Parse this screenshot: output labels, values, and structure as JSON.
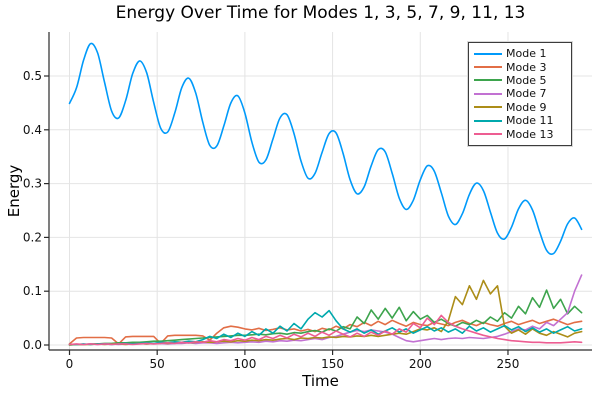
{
  "chart_data": {
    "type": "line",
    "title": "Energy Over Time for Modes 1, 3, 5, 7, 9, 11, 13",
    "xlabel": "Time",
    "ylabel": "Energy",
    "xlim": [
      -12,
      298
    ],
    "ylim": [
      -0.009,
      0.582
    ],
    "xticks": [
      0,
      50,
      100,
      150,
      200,
      250
    ],
    "xtick_labels": [
      "0",
      "50",
      "100",
      "150",
      "200",
      "250"
    ],
    "yticks": [
      0.0,
      0.1,
      0.2,
      0.3,
      0.4,
      0.5
    ],
    "ytick_labels": [
      "0.0",
      "0.1",
      "0.2",
      "0.3",
      "0.4",
      "0.5"
    ],
    "grid": true,
    "legend_position": "top-right",
    "x": [
      0,
      4,
      8,
      12,
      16,
      20,
      24,
      28,
      32,
      36,
      40,
      44,
      48,
      52,
      56,
      60,
      64,
      68,
      72,
      76,
      80,
      84,
      88,
      92,
      96,
      100,
      104,
      108,
      112,
      116,
      120,
      124,
      128,
      132,
      136,
      140,
      144,
      148,
      152,
      156,
      160,
      164,
      168,
      172,
      176,
      180,
      184,
      188,
      192,
      196,
      200,
      204,
      208,
      212,
      216,
      220,
      224,
      228,
      232,
      236,
      240,
      244,
      248,
      252,
      256,
      260,
      264,
      268,
      272,
      276,
      280,
      284,
      288,
      292
    ],
    "series": [
      {
        "name": "Mode 1",
        "color": "#009AFA",
        "smooth": true,
        "values": [
          0.449,
          0.478,
          0.529,
          0.56,
          0.543,
          0.488,
          0.435,
          0.422,
          0.454,
          0.504,
          0.528,
          0.506,
          0.451,
          0.403,
          0.396,
          0.431,
          0.478,
          0.496,
          0.468,
          0.414,
          0.371,
          0.37,
          0.407,
          0.45,
          0.463,
          0.431,
          0.377,
          0.34,
          0.344,
          0.383,
          0.422,
          0.428,
          0.393,
          0.342,
          0.31,
          0.319,
          0.358,
          0.393,
          0.394,
          0.356,
          0.307,
          0.281,
          0.294,
          0.333,
          0.363,
          0.359,
          0.319,
          0.273,
          0.252,
          0.269,
          0.307,
          0.333,
          0.323,
          0.283,
          0.24,
          0.224,
          0.244,
          0.28,
          0.301,
          0.287,
          0.247,
          0.208,
          0.197,
          0.219,
          0.253,
          0.269,
          0.251,
          0.211,
          0.176,
          0.17,
          0.193,
          0.225,
          0.236,
          0.215
        ]
      },
      {
        "name": "Mode 3",
        "color": "#E26E46",
        "smooth": false,
        "values": [
          0.002,
          0.013,
          0.014,
          0.014,
          0.014,
          0.014,
          0.013,
          0.002,
          0.015,
          0.016,
          0.016,
          0.016,
          0.016,
          0.003,
          0.017,
          0.018,
          0.018,
          0.018,
          0.018,
          0.017,
          0.009,
          0.022,
          0.032,
          0.035,
          0.033,
          0.03,
          0.028,
          0.031,
          0.027,
          0.029,
          0.032,
          0.028,
          0.03,
          0.026,
          0.029,
          0.025,
          0.031,
          0.028,
          0.035,
          0.03,
          0.038,
          0.034,
          0.042,
          0.036,
          0.044,
          0.038,
          0.046,
          0.04,
          0.035,
          0.042,
          0.038,
          0.036,
          0.042,
          0.039,
          0.036,
          0.042,
          0.046,
          0.04,
          0.036,
          0.042,
          0.038,
          0.035,
          0.04,
          0.044,
          0.038,
          0.042,
          0.046,
          0.04,
          0.044,
          0.048,
          0.043,
          0.038,
          0.042,
          0.044
        ]
      },
      {
        "name": "Mode 5",
        "color": "#3DA44D",
        "smooth": false,
        "values": [
          0.0,
          0.001,
          0.001,
          0.002,
          0.002,
          0.003,
          0.003,
          0.004,
          0.004,
          0.005,
          0.005,
          0.006,
          0.007,
          0.007,
          0.008,
          0.009,
          0.01,
          0.011,
          0.012,
          0.013,
          0.014,
          0.015,
          0.016,
          0.017,
          0.018,
          0.018,
          0.019,
          0.02,
          0.019,
          0.021,
          0.022,
          0.02,
          0.023,
          0.022,
          0.025,
          0.027,
          0.024,
          0.03,
          0.026,
          0.034,
          0.03,
          0.052,
          0.04,
          0.065,
          0.048,
          0.068,
          0.05,
          0.07,
          0.045,
          0.062,
          0.048,
          0.055,
          0.042,
          0.048,
          0.04,
          0.035,
          0.042,
          0.038,
          0.046,
          0.04,
          0.052,
          0.044,
          0.06,
          0.05,
          0.072,
          0.058,
          0.088,
          0.07,
          0.102,
          0.068,
          0.085,
          0.058,
          0.072,
          0.06
        ]
      },
      {
        "name": "Mode 7",
        "color": "#C271D2",
        "smooth": false,
        "values": [
          0.001,
          0.001,
          0.001,
          0.002,
          0.001,
          0.002,
          0.002,
          0.001,
          0.002,
          0.002,
          0.003,
          0.002,
          0.003,
          0.003,
          0.002,
          0.003,
          0.003,
          0.004,
          0.003,
          0.004,
          0.004,
          0.003,
          0.004,
          0.005,
          0.004,
          0.005,
          0.006,
          0.005,
          0.007,
          0.006,
          0.008,
          0.007,
          0.009,
          0.008,
          0.01,
          0.012,
          0.01,
          0.014,
          0.016,
          0.02,
          0.024,
          0.027,
          0.025,
          0.028,
          0.026,
          0.024,
          0.02,
          0.014,
          0.008,
          0.006,
          0.008,
          0.01,
          0.012,
          0.01,
          0.012,
          0.013,
          0.012,
          0.014,
          0.013,
          0.012,
          0.014,
          0.016,
          0.02,
          0.025,
          0.03,
          0.028,
          0.035,
          0.03,
          0.042,
          0.036,
          0.048,
          0.06,
          0.1,
          0.13
        ]
      },
      {
        "name": "Mode 9",
        "color": "#AC8D18",
        "smooth": false,
        "values": [
          0.0,
          0.001,
          0.001,
          0.001,
          0.002,
          0.001,
          0.002,
          0.002,
          0.001,
          0.002,
          0.003,
          0.002,
          0.003,
          0.004,
          0.003,
          0.004,
          0.005,
          0.004,
          0.005,
          0.006,
          0.005,
          0.006,
          0.007,
          0.006,
          0.008,
          0.007,
          0.009,
          0.008,
          0.01,
          0.009,
          0.011,
          0.012,
          0.01,
          0.013,
          0.012,
          0.014,
          0.013,
          0.015,
          0.014,
          0.016,
          0.015,
          0.017,
          0.016,
          0.018,
          0.016,
          0.018,
          0.02,
          0.022,
          0.02,
          0.025,
          0.03,
          0.028,
          0.032,
          0.025,
          0.045,
          0.09,
          0.075,
          0.11,
          0.085,
          0.12,
          0.095,
          0.11,
          0.035,
          0.022,
          0.028,
          0.02,
          0.03,
          0.022,
          0.018,
          0.025,
          0.02,
          0.015,
          0.022,
          0.025
        ]
      },
      {
        "name": "Mode 11",
        "color": "#00A9AD",
        "smooth": false,
        "values": [
          0.001,
          0.001,
          0.002,
          0.001,
          0.002,
          0.002,
          0.001,
          0.002,
          0.003,
          0.002,
          0.003,
          0.004,
          0.003,
          0.005,
          0.004,
          0.006,
          0.005,
          0.007,
          0.006,
          0.01,
          0.016,
          0.012,
          0.02,
          0.014,
          0.022,
          0.016,
          0.025,
          0.018,
          0.03,
          0.022,
          0.035,
          0.026,
          0.04,
          0.03,
          0.048,
          0.06,
          0.052,
          0.064,
          0.045,
          0.03,
          0.024,
          0.03,
          0.022,
          0.028,
          0.02,
          0.026,
          0.032,
          0.024,
          0.03,
          0.022,
          0.028,
          0.034,
          0.026,
          0.032,
          0.024,
          0.03,
          0.022,
          0.035,
          0.026,
          0.032,
          0.024,
          0.03,
          0.036,
          0.028,
          0.034,
          0.025,
          0.032,
          0.024,
          0.03,
          0.022,
          0.028,
          0.034,
          0.026,
          0.03
        ]
      },
      {
        "name": "Mode 13",
        "color": "#ED5D92",
        "smooth": false,
        "values": [
          0.001,
          0.002,
          0.001,
          0.002,
          0.001,
          0.002,
          0.001,
          0.002,
          0.002,
          0.001,
          0.002,
          0.003,
          0.002,
          0.003,
          0.004,
          0.003,
          0.005,
          0.004,
          0.006,
          0.005,
          0.008,
          0.006,
          0.01,
          0.008,
          0.012,
          0.009,
          0.014,
          0.01,
          0.016,
          0.012,
          0.018,
          0.013,
          0.02,
          0.015,
          0.022,
          0.016,
          0.024,
          0.018,
          0.026,
          0.02,
          0.015,
          0.022,
          0.016,
          0.024,
          0.018,
          0.026,
          0.02,
          0.03,
          0.024,
          0.04,
          0.032,
          0.05,
          0.038,
          0.055,
          0.042,
          0.035,
          0.03,
          0.026,
          0.022,
          0.018,
          0.015,
          0.012,
          0.01,
          0.008,
          0.007,
          0.006,
          0.005,
          0.005,
          0.004,
          0.004,
          0.004,
          0.005,
          0.006,
          0.005
        ]
      }
    ]
  }
}
